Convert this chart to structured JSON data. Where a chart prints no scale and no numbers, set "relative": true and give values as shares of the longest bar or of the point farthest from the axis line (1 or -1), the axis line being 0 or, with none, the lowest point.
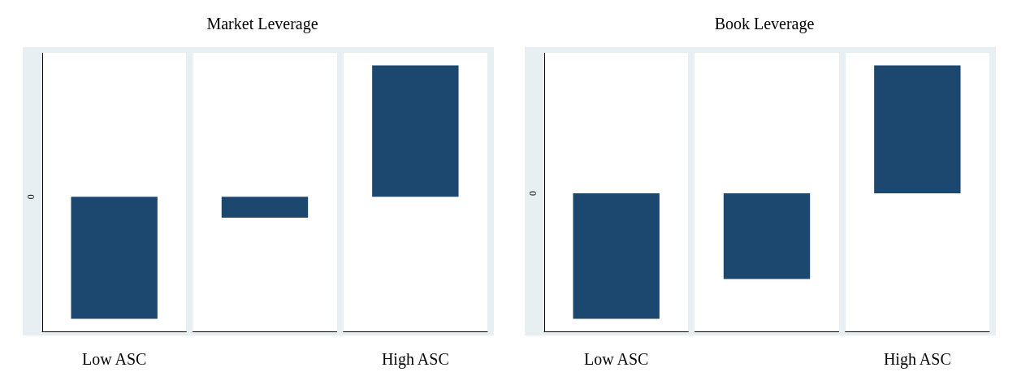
{
  "chart_data": [
    {
      "type": "bar",
      "title": "Market Leverage",
      "categories": [
        "Low ASC",
        null,
        "High ASC"
      ],
      "values": [
        -0.93,
        -0.16,
        1
      ],
      "color": "#1c4870",
      "relative": true,
      "annotations": [
        "0"
      ]
    },
    {
      "type": "bar",
      "title": "Book Leverage",
      "categories": [
        "Low ASC",
        null,
        "High ASC"
      ],
      "values": [
        -0.98,
        -0.67,
        1
      ],
      "color": "#1c4870",
      "relative": true,
      "annotations": [
        "0"
      ]
    }
  ]
}
